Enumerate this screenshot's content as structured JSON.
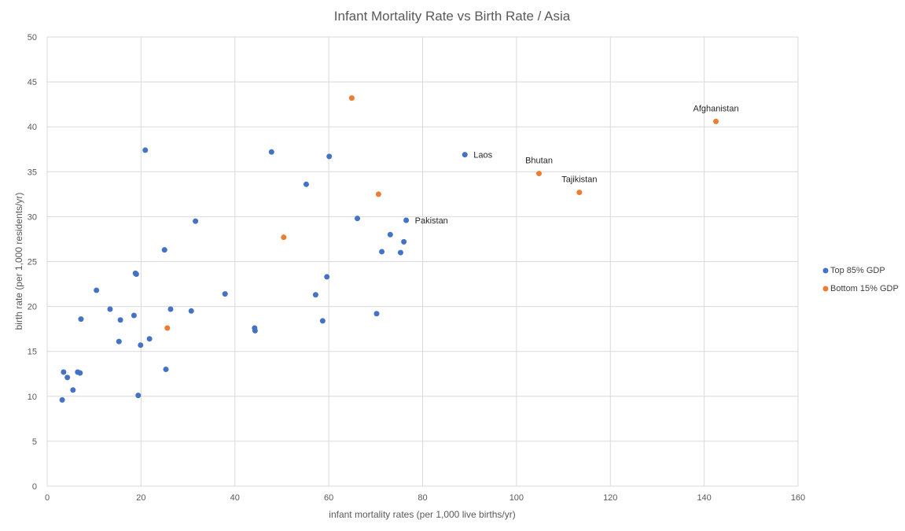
{
  "chart_data": {
    "type": "scatter",
    "title": "Infant Mortality Rate vs Birth Rate / Asia",
    "xlabel": "infant mortality rates (per 1,000 live births/yr)",
    "ylabel": "birth rate (per 1,000 residents/yr)",
    "xlim": [
      0,
      160
    ],
    "ylim": [
      0,
      50
    ],
    "x_ticks": [
      0,
      20,
      40,
      60,
      80,
      100,
      120,
      140,
      160
    ],
    "y_ticks": [
      0,
      5,
      10,
      15,
      20,
      25,
      30,
      35,
      40,
      45,
      50
    ],
    "grid": true,
    "legend_position": "right",
    "series": [
      {
        "name": "Top 85% GDP",
        "color": "#4472C4",
        "points": [
          {
            "x": 3.2,
            "y": 9.6
          },
          {
            "x": 3.5,
            "y": 12.7
          },
          {
            "x": 4.3,
            "y": 12.1
          },
          {
            "x": 5.5,
            "y": 10.7
          },
          {
            "x": 6.5,
            "y": 12.7
          },
          {
            "x": 7.0,
            "y": 12.6
          },
          {
            "x": 7.2,
            "y": 18.6
          },
          {
            "x": 10.5,
            "y": 21.8
          },
          {
            "x": 13.4,
            "y": 19.7
          },
          {
            "x": 15.3,
            "y": 16.1
          },
          {
            "x": 15.6,
            "y": 18.5
          },
          {
            "x": 18.5,
            "y": 19.0
          },
          {
            "x": 18.8,
            "y": 23.7
          },
          {
            "x": 19.0,
            "y": 23.6
          },
          {
            "x": 19.4,
            "y": 10.1
          },
          {
            "x": 19.9,
            "y": 15.7
          },
          {
            "x": 20.9,
            "y": 37.4
          },
          {
            "x": 21.8,
            "y": 16.4
          },
          {
            "x": 25.0,
            "y": 26.3
          },
          {
            "x": 25.3,
            "y": 13.0
          },
          {
            "x": 26.3,
            "y": 19.7
          },
          {
            "x": 30.7,
            "y": 19.5
          },
          {
            "x": 31.6,
            "y": 29.5
          },
          {
            "x": 37.9,
            "y": 21.4
          },
          {
            "x": 44.2,
            "y": 17.6
          },
          {
            "x": 44.3,
            "y": 17.3
          },
          {
            "x": 47.8,
            "y": 37.2
          },
          {
            "x": 55.2,
            "y": 33.6
          },
          {
            "x": 57.2,
            "y": 21.3
          },
          {
            "x": 58.7,
            "y": 18.4
          },
          {
            "x": 59.6,
            "y": 23.3
          },
          {
            "x": 60.1,
            "y": 36.7
          },
          {
            "x": 66.1,
            "y": 29.8
          },
          {
            "x": 70.2,
            "y": 19.2
          },
          {
            "x": 71.3,
            "y": 26.1
          },
          {
            "x": 73.1,
            "y": 28.0
          },
          {
            "x": 75.3,
            "y": 26.0
          },
          {
            "x": 76.0,
            "y": 27.2
          },
          {
            "x": 76.5,
            "y": 29.6,
            "label": "Pakistan"
          },
          {
            "x": 89.0,
            "y": 36.9,
            "label": "Laos"
          }
        ]
      },
      {
        "name": "Bottom 15% GDP",
        "color": "#ED7D31",
        "points": [
          {
            "x": 25.6,
            "y": 17.6
          },
          {
            "x": 50.4,
            "y": 27.7
          },
          {
            "x": 64.9,
            "y": 43.2
          },
          {
            "x": 70.6,
            "y": 32.5
          },
          {
            "x": 104.8,
            "y": 34.8,
            "label": "Bhutan"
          },
          {
            "x": 113.4,
            "y": 32.7,
            "label": "Tajikistan"
          },
          {
            "x": 142.5,
            "y": 40.6,
            "label": "Afghanistan"
          }
        ]
      }
    ]
  }
}
